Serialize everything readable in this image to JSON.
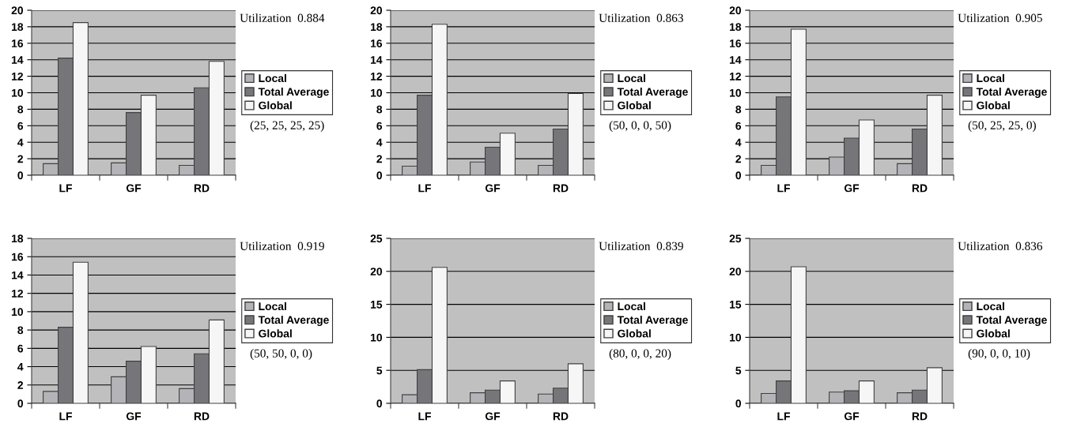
{
  "chart_data": [
    {
      "type": "bar",
      "categories": [
        "LF",
        "GF",
        "RD"
      ],
      "series": [
        {
          "name": "Local",
          "color": "#b4b4b8",
          "values": [
            1.4,
            1.5,
            1.2
          ]
        },
        {
          "name": "Total Average",
          "color": "#76767a",
          "values": [
            14.2,
            7.6,
            10.6
          ]
        },
        {
          "name": "Global",
          "color": "#f6f6f6",
          "values": [
            18.5,
            9.7,
            13.8
          ]
        }
      ],
      "ylim": [
        0,
        20
      ],
      "yticks": [
        0,
        2,
        4,
        6,
        8,
        10,
        12,
        14,
        16,
        18,
        20
      ],
      "grid": "y",
      "legend": "right",
      "annotations": [
        "Utilization  0.884",
        "(25, 25, 25, 25)"
      ]
    },
    {
      "type": "bar",
      "categories": [
        "LF",
        "GF",
        "RD"
      ],
      "series": [
        {
          "name": "Local",
          "color": "#b4b4b8",
          "values": [
            1.1,
            1.6,
            1.2
          ]
        },
        {
          "name": "Total Average",
          "color": "#76767a",
          "values": [
            9.7,
            3.4,
            5.6
          ]
        },
        {
          "name": "Global",
          "color": "#f6f6f6",
          "values": [
            18.3,
            5.1,
            9.9
          ]
        }
      ],
      "ylim": [
        0,
        20
      ],
      "yticks": [
        0,
        2,
        4,
        6,
        8,
        10,
        12,
        14,
        16,
        18,
        20
      ],
      "grid": "y",
      "legend": "right",
      "annotations": [
        "Utilization  0.863",
        "(50, 0, 0, 50)"
      ]
    },
    {
      "type": "bar",
      "categories": [
        "LF",
        "GF",
        "RD"
      ],
      "series": [
        {
          "name": "Local",
          "color": "#b4b4b8",
          "values": [
            1.2,
            2.2,
            1.4
          ]
        },
        {
          "name": "Total Average",
          "color": "#76767a",
          "values": [
            9.5,
            4.5,
            5.6
          ]
        },
        {
          "name": "Global",
          "color": "#f6f6f6",
          "values": [
            17.7,
            6.7,
            9.7
          ]
        }
      ],
      "ylim": [
        0,
        20
      ],
      "yticks": [
        0,
        2,
        4,
        6,
        8,
        10,
        12,
        14,
        16,
        18,
        20
      ],
      "grid": "y",
      "legend": "right",
      "annotations": [
        "Utilization  0.905",
        "(50, 25, 25, 0)"
      ]
    },
    {
      "type": "bar",
      "categories": [
        "LF",
        "GF",
        "RD"
      ],
      "series": [
        {
          "name": "Local",
          "color": "#b4b4b8",
          "values": [
            1.3,
            2.9,
            1.6
          ]
        },
        {
          "name": "Total Average",
          "color": "#76767a",
          "values": [
            8.3,
            4.6,
            5.4
          ]
        },
        {
          "name": "Global",
          "color": "#f6f6f6",
          "values": [
            15.4,
            6.2,
            9.1
          ]
        }
      ],
      "ylim": [
        0,
        18
      ],
      "yticks": [
        0,
        2,
        4,
        6,
        8,
        10,
        12,
        14,
        16,
        18
      ],
      "grid": "y",
      "legend": "right",
      "annotations": [
        "Utilization  0.919",
        "(50, 50, 0, 0)"
      ]
    },
    {
      "type": "bar",
      "categories": [
        "LF",
        "GF",
        "RD"
      ],
      "series": [
        {
          "name": "Local",
          "color": "#b4b4b8",
          "values": [
            1.3,
            1.6,
            1.4
          ]
        },
        {
          "name": "Total Average",
          "color": "#76767a",
          "values": [
            5.1,
            2.0,
            2.3
          ]
        },
        {
          "name": "Global",
          "color": "#f6f6f6",
          "values": [
            20.6,
            3.4,
            6.0
          ]
        }
      ],
      "ylim": [
        0,
        25
      ],
      "yticks": [
        0,
        5,
        10,
        15,
        20,
        25
      ],
      "grid": "y",
      "legend": "right",
      "annotations": [
        "Utilization  0.839",
        "(80, 0, 0, 20)"
      ]
    },
    {
      "type": "bar",
      "categories": [
        "LF",
        "GF",
        "RD"
      ],
      "series": [
        {
          "name": "Local",
          "color": "#b4b4b8",
          "values": [
            1.5,
            1.7,
            1.6
          ]
        },
        {
          "name": "Total Average",
          "color": "#76767a",
          "values": [
            3.4,
            1.9,
            2.0
          ]
        },
        {
          "name": "Global",
          "color": "#f6f6f6",
          "values": [
            20.7,
            3.4,
            5.4
          ]
        }
      ],
      "ylim": [
        0,
        25
      ],
      "yticks": [
        0,
        5,
        10,
        15,
        20,
        25
      ],
      "grid": "y",
      "legend": "right",
      "annotations": [
        "Utilization  0.836",
        "(90, 0, 0, 10)"
      ]
    }
  ]
}
